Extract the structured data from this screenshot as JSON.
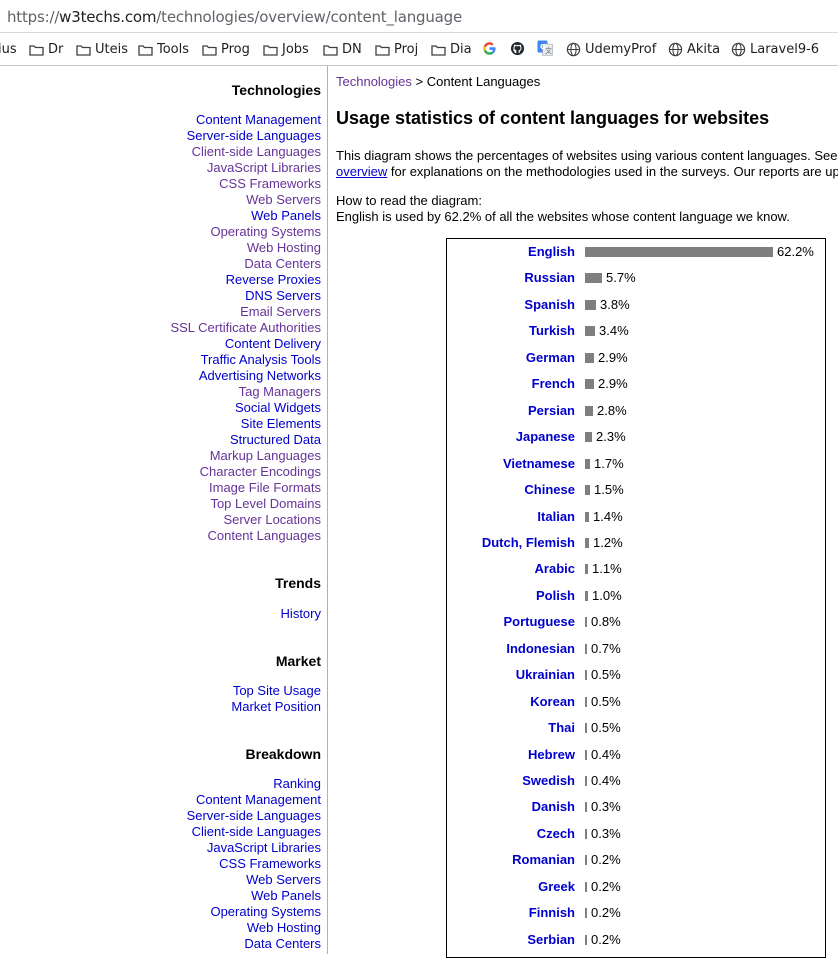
{
  "browser": {
    "url_scheme": "https://",
    "url_host": "w3techs.com",
    "url_path": "/technologies/overview/content_language",
    "bookmarks": [
      "ius",
      "Dr",
      "Uteis",
      "Tools",
      "Prog",
      "Jobs",
      "DN",
      "Proj",
      "Dia",
      "UdemyProf",
      "Akita",
      "Laravel9-6"
    ]
  },
  "sidebar": {
    "technologies_heading": "Technologies",
    "technologies": [
      {
        "label": "Content Management",
        "visited": false
      },
      {
        "label": "Server-side Languages",
        "visited": false
      },
      {
        "label": "Client-side Languages",
        "visited": true
      },
      {
        "label": "JavaScript Libraries",
        "visited": true
      },
      {
        "label": "CSS Frameworks",
        "visited": true
      },
      {
        "label": "Web Servers",
        "visited": true
      },
      {
        "label": "Web Panels",
        "visited": false
      },
      {
        "label": "Operating Systems",
        "visited": true
      },
      {
        "label": "Web Hosting",
        "visited": true
      },
      {
        "label": "Data Centers",
        "visited": true
      },
      {
        "label": "Reverse Proxies",
        "visited": false
      },
      {
        "label": "DNS Servers",
        "visited": false
      },
      {
        "label": "Email Servers",
        "visited": true
      },
      {
        "label": "SSL Certificate Authorities",
        "visited": true
      },
      {
        "label": "Content Delivery",
        "visited": false
      },
      {
        "label": "Traffic Analysis Tools",
        "visited": false
      },
      {
        "label": "Advertising Networks",
        "visited": false
      },
      {
        "label": "Tag Managers",
        "visited": true
      },
      {
        "label": "Social Widgets",
        "visited": false
      },
      {
        "label": "Site Elements",
        "visited": false
      },
      {
        "label": "Structured Data",
        "visited": false
      },
      {
        "label": "Markup Languages",
        "visited": true
      },
      {
        "label": "Character Encodings",
        "visited": true
      },
      {
        "label": "Image File Formats",
        "visited": true
      },
      {
        "label": "Top Level Domains",
        "visited": true
      },
      {
        "label": "Server Locations",
        "visited": true
      },
      {
        "label": "Content Languages",
        "visited": true
      }
    ],
    "trends_heading": "Trends",
    "trends": [
      {
        "label": "History",
        "visited": false
      }
    ],
    "market_heading": "Market",
    "market": [
      {
        "label": "Top Site Usage",
        "visited": false
      },
      {
        "label": "Market Position",
        "visited": false
      }
    ],
    "breakdown_heading": "Breakdown",
    "breakdown": [
      {
        "label": "Ranking",
        "visited": false
      },
      {
        "label": "Content Management",
        "visited": false
      },
      {
        "label": "Server-side Languages",
        "visited": false
      },
      {
        "label": "Client-side Languages",
        "visited": false
      },
      {
        "label": "JavaScript Libraries",
        "visited": false
      },
      {
        "label": "CSS Frameworks",
        "visited": false
      },
      {
        "label": "Web Servers",
        "visited": false
      },
      {
        "label": "Web Panels",
        "visited": false
      },
      {
        "label": "Operating Systems",
        "visited": false
      },
      {
        "label": "Web Hosting",
        "visited": false
      },
      {
        "label": "Data Centers",
        "visited": false
      }
    ]
  },
  "main": {
    "breadcrumb_link": "Technologies",
    "breadcrumb_sep": " > ",
    "breadcrumb_current": "Content Languages",
    "title": "Usage statistics of content languages for websites",
    "intro_line1": "This diagram shows the percentages of websites using various content languages. See",
    "intro_link": "overview",
    "intro_line2": " for explanations on the methodologies used in the surveys. Our reports are up",
    "howto_line1": "How to read the diagram:",
    "howto_line2": "English is used by 62.2% of all the websites whose content language we know."
  },
  "chart_data": {
    "type": "bar",
    "orientation": "horizontal",
    "categories": [
      "English",
      "Russian",
      "Spanish",
      "Turkish",
      "German",
      "French",
      "Persian",
      "Japanese",
      "Vietnamese",
      "Chinese",
      "Italian",
      "Dutch, Flemish",
      "Arabic",
      "Polish",
      "Portuguese",
      "Indonesian",
      "Ukrainian",
      "Korean",
      "Thai",
      "Hebrew",
      "Swedish",
      "Danish",
      "Czech",
      "Romanian",
      "Greek",
      "Finnish",
      "Serbian"
    ],
    "values": [
      62.2,
      5.7,
      3.8,
      3.4,
      2.9,
      2.9,
      2.8,
      2.3,
      1.7,
      1.5,
      1.4,
      1.2,
      1.1,
      1.0,
      0.8,
      0.7,
      0.5,
      0.5,
      0.5,
      0.4,
      0.4,
      0.3,
      0.3,
      0.2,
      0.2,
      0.2,
      0.2
    ],
    "value_labels": [
      "62.2%",
      "5.7%",
      "3.8%",
      "3.4%",
      "2.9%",
      "2.9%",
      "2.8%",
      "2.3%",
      "1.7%",
      "1.5%",
      "1.4%",
      "1.2%",
      "1.1%",
      "1.0%",
      "0.8%",
      "0.7%",
      "0.5%",
      "0.5%",
      "0.5%",
      "0.4%",
      "0.4%",
      "0.3%",
      "0.3%",
      "0.2%",
      "0.2%",
      "0.2%",
      "0.2%"
    ],
    "unit": "%",
    "bar_color": "#7f7f7f",
    "label_color": "#0000cc"
  }
}
